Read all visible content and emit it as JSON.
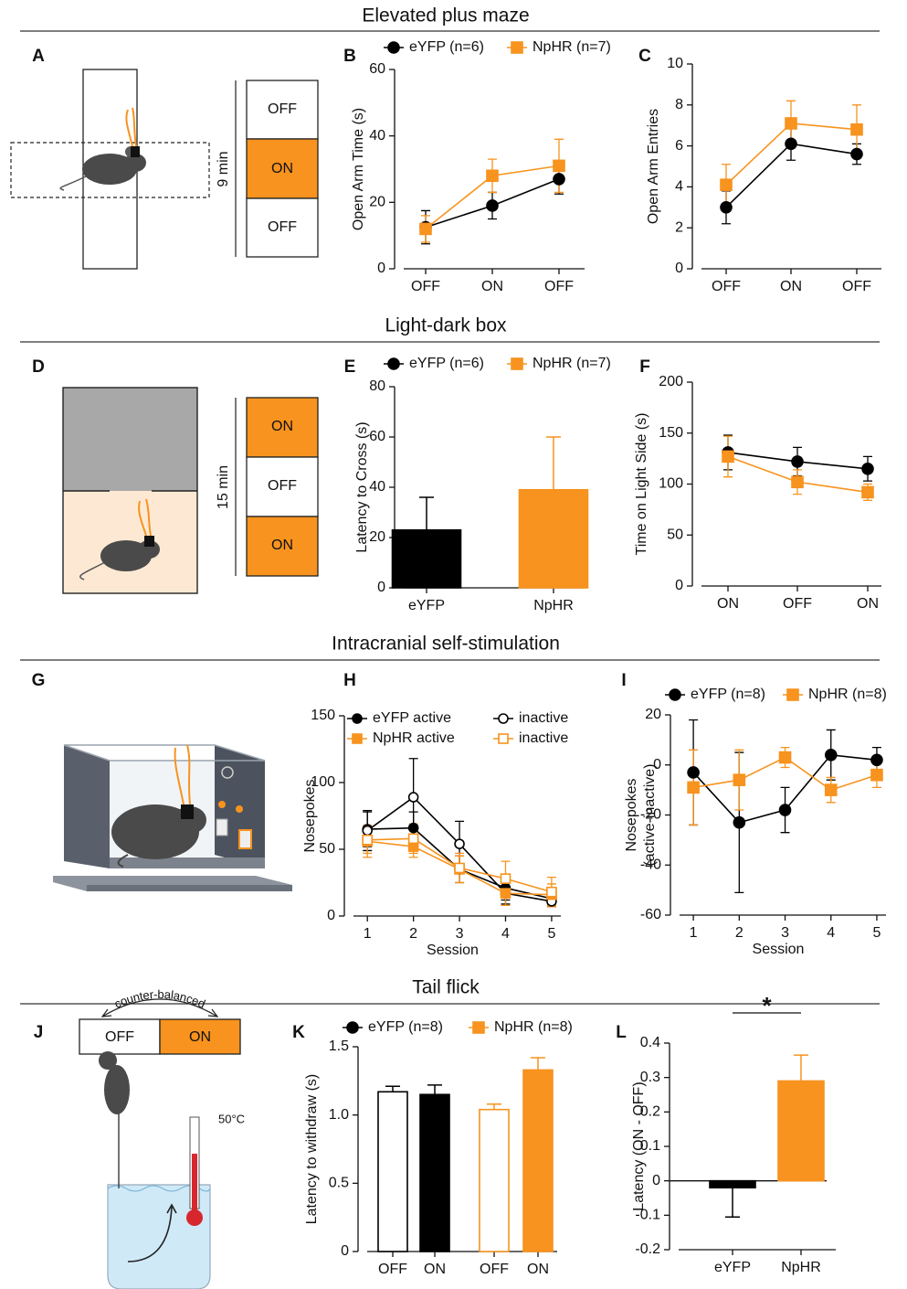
{
  "sections": [
    "Elevated plus maze",
    "Light-dark box",
    "Intracranial self-stimulation",
    "Tail flick"
  ],
  "diagrams": [
    {
      "letter": "A",
      "duration": "9 min",
      "blocks": [
        {
          "label": "OFF",
          "color": "#ffffff"
        },
        {
          "label": "ON",
          "color": "#f7931e"
        },
        {
          "label": "OFF",
          "color": "#ffffff"
        }
      ]
    },
    {
      "letter": "D",
      "duration": "15 min",
      "blocks": [
        {
          "label": "ON",
          "color": "#f7931e"
        },
        {
          "label": "OFF",
          "color": "#ffffff"
        },
        {
          "label": "ON",
          "color": "#f7931e"
        }
      ]
    },
    {
      "letter": "G"
    },
    {
      "letter": "J",
      "arrow_label": "counter-balanced",
      "temperature": "50°C",
      "blocks": [
        {
          "label": "OFF",
          "color": "#ffffff"
        },
        {
          "label": "ON",
          "color": "#f7931e"
        }
      ]
    }
  ],
  "chart_data": [
    {
      "type": "line",
      "letter": "B",
      "ylabel": "Open Arm Time (s)",
      "categories": [
        "OFF",
        "ON",
        "OFF"
      ],
      "ylim": [
        0,
        60
      ],
      "yticks": [
        0,
        20,
        40,
        60
      ],
      "series": [
        {
          "name": "eYFP (n=6)",
          "color": "#000000",
          "marker": "circle",
          "filled": true,
          "values": [
            12.5,
            19,
            27
          ],
          "errors": [
            5,
            4,
            4.5
          ]
        },
        {
          "name": "NpHR (n=7)",
          "color": "#f7931e",
          "marker": "square",
          "filled": true,
          "values": [
            12,
            28,
            31
          ],
          "errors": [
            4,
            5,
            8
          ]
        }
      ]
    },
    {
      "type": "line",
      "letter": "C",
      "ylabel": "Open Arm Entries",
      "categories": [
        "OFF",
        "ON",
        "OFF"
      ],
      "ylim": [
        0,
        10
      ],
      "yticks": [
        0,
        2,
        4,
        6,
        8,
        10
      ],
      "series": [
        {
          "color": "#000000",
          "marker": "circle",
          "filled": true,
          "values": [
            3,
            6.1,
            5.6
          ],
          "errors": [
            0.8,
            0.8,
            0.5
          ]
        },
        {
          "color": "#f7931e",
          "marker": "square",
          "filled": true,
          "values": [
            4.1,
            7.1,
            6.8
          ],
          "errors": [
            1,
            1.1,
            1.2
          ]
        }
      ]
    },
    {
      "type": "bar",
      "letter": "E",
      "ylabel": "Latency to Cross (s)",
      "categories": [
        "eYFP",
        "NpHR"
      ],
      "values": [
        23,
        39
      ],
      "errors": [
        13,
        21
      ],
      "colors": [
        "#000000",
        "#f7931e"
      ],
      "filled": [
        true,
        true
      ],
      "ylim": [
        0,
        80
      ],
      "yticks": [
        0,
        20,
        40,
        60,
        80
      ],
      "legend": [
        {
          "name": "eYFP (n=6)",
          "color": "#000000",
          "marker": "circle"
        },
        {
          "name": "NpHR (n=7)",
          "color": "#f7931e",
          "marker": "square"
        }
      ]
    },
    {
      "type": "line",
      "letter": "F",
      "ylabel": "Time on Light Side (s)",
      "categories": [
        "ON",
        "OFF",
        "ON"
      ],
      "ylim": [
        0,
        200
      ],
      "yticks": [
        0,
        50,
        100,
        150,
        200
      ],
      "series": [
        {
          "color": "#000000",
          "marker": "circle",
          "filled": true,
          "values": [
            131,
            122,
            115
          ],
          "errors": [
            17,
            14,
            12
          ]
        },
        {
          "color": "#f7931e",
          "marker": "square",
          "filled": true,
          "values": [
            127,
            102,
            92
          ],
          "errors": [
            20,
            12,
            8
          ]
        }
      ]
    },
    {
      "type": "line",
      "letter": "H",
      "ylabel": "Nosepokes",
      "xlabel": "Session",
      "x": [
        1,
        2,
        3,
        4,
        5
      ],
      "xlim": [
        0.5,
        5.2
      ],
      "xticks": [
        1,
        2,
        3,
        4,
        5
      ],
      "ylim": [
        0,
        150
      ],
      "yticks": [
        0,
        50,
        100,
        150
      ],
      "series": [
        {
          "name": "eYFP active",
          "color": "#000000",
          "marker": "circle",
          "filled": true,
          "values": [
            65,
            66,
            35,
            21,
            13
          ],
          "errors": [
            13,
            12,
            10,
            9,
            5
          ]
        },
        {
          "name": "inactive",
          "color": "#000000",
          "marker": "circle",
          "filled": false,
          "values": [
            64,
            89,
            54,
            17,
            11
          ],
          "errors": [
            15,
            29,
            17,
            8,
            4
          ]
        },
        {
          "name": "NpHR active",
          "color": "#f7931e",
          "marker": "square",
          "filled": true,
          "values": [
            56,
            52,
            35,
            17,
            16
          ],
          "errors": [
            12,
            8,
            10,
            9,
            8
          ]
        },
        {
          "name": "inactive",
          "color": "#f7931e",
          "marker": "square",
          "filled": false,
          "values": [
            57,
            58,
            36,
            28,
            18
          ],
          "errors": [
            10,
            11,
            11,
            13,
            11
          ]
        }
      ]
    },
    {
      "type": "line",
      "letter": "I",
      "ylabel": [
        "Nosepokes",
        "(active-inactive)"
      ],
      "xlabel": "Session",
      "x": [
        1,
        2,
        3,
        4,
        5
      ],
      "xlim": [
        0.5,
        5.2
      ],
      "xticks": [
        1,
        2,
        3,
        4,
        5
      ],
      "ylim": [
        -60,
        20
      ],
      "yticks": [
        -60,
        -40,
        -20,
        0,
        20
      ],
      "series": [
        {
          "name": "eYFP (n=8)",
          "color": "#000000",
          "marker": "circle",
          "filled": true,
          "values": [
            -3,
            -23,
            -18,
            4,
            2
          ],
          "errors": [
            21,
            28,
            9,
            10,
            5
          ]
        },
        {
          "name": "NpHR (n=8)",
          "color": "#f7931e",
          "marker": "square",
          "filled": true,
          "values": [
            -9,
            -6,
            3,
            -10,
            -4
          ],
          "errors": [
            15,
            12,
            4,
            5,
            5
          ]
        }
      ]
    },
    {
      "type": "bar",
      "letter": "K",
      "ylabel": "Latency to withdraw (s)",
      "categories": [
        "OFF",
        "ON",
        "OFF",
        "ON"
      ],
      "values": [
        1.17,
        1.15,
        1.04,
        1.33
      ],
      "errors": [
        0.04,
        0.07,
        0.04,
        0.09
      ],
      "colors": [
        "#000000",
        "#000000",
        "#f7931e",
        "#f7931e"
      ],
      "filled": [
        false,
        true,
        false,
        true
      ],
      "ylim": [
        0,
        1.5
      ],
      "yticks": [
        0,
        0.5,
        {
          "value": 1,
          "label": "1.0"
        },
        1.5
      ],
      "legend": [
        {
          "name": "eYFP (n=8)",
          "color": "#000000",
          "marker": "circle"
        },
        {
          "name": "NpHR (n=8)",
          "color": "#f7931e",
          "marker": "square"
        }
      ]
    },
    {
      "type": "bar",
      "letter": "L",
      "ylabel": "Latency (ON - OFF)",
      "categories": [
        "eYFP",
        "NpHR"
      ],
      "values": [
        -0.02,
        0.29
      ],
      "errors": [
        0.085,
        0.075
      ],
      "colors": [
        "#000000",
        "#f7931e"
      ],
      "filled": [
        true,
        true
      ],
      "ylim": [
        -0.2,
        0.4
      ],
      "yticks": [
        -0.2,
        -0.1,
        0,
        0.1,
        0.2,
        0.3,
        0.4
      ],
      "annotation": "*"
    }
  ]
}
